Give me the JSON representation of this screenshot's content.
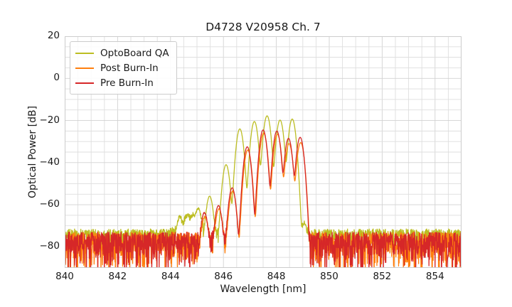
{
  "chart_data": {
    "type": "line",
    "title": "D4728 V20958 Ch. 7",
    "xlabel": "Wavelength [nm]",
    "ylabel": "Optical Power [dB]",
    "xlim": [
      840,
      855
    ],
    "ylim": [
      -90,
      20
    ],
    "xticks": [
      840,
      842,
      844,
      846,
      848,
      850,
      852,
      854
    ],
    "yticks": [
      20,
      0,
      -20,
      -40,
      -60,
      -80
    ],
    "minor_x_step_nm": 0.5,
    "minor_y_step_db": 5,
    "grid": true,
    "legend_position": "upper left",
    "background": "#ffffff",
    "grid_color_major": "#d2d2d2",
    "grid_color_minor": "#dedede",
    "spine_color": "#cccccc",
    "description": "Optical spectra of VCSEL channel 7: multimode peak cluster between 845 and 849 nm over a noise floor near -73 to -90 dB",
    "series": [
      {
        "name": "OptoBoard QA",
        "color": "#bcbd22",
        "mode_width_nm": 0.1,
        "noise_floor_db": -71.5,
        "noise_spread_db": 4.5,
        "broad_bump": {
          "center_nm": 844.8,
          "height_db": 5.0,
          "width_nm": 0.6
        },
        "peaks": [
          [
            844.35,
            -67
          ],
          [
            844.62,
            -66.5
          ],
          [
            844.85,
            -66
          ],
          [
            845.05,
            -62.5
          ],
          [
            845.48,
            -56
          ],
          [
            846.1,
            -41
          ],
          [
            846.62,
            -24
          ],
          [
            847.17,
            -20.5
          ],
          [
            847.65,
            -17.8
          ],
          [
            848.14,
            -19.8
          ],
          [
            848.6,
            -19.3
          ],
          [
            849.05,
            -70
          ]
        ]
      },
      {
        "name": "Post Burn-In",
        "color": "#ff7f0e",
        "mode_width_nm": 0.1,
        "noise_floor_db": -73,
        "noise_spread_db": 8,
        "broad_bump": null,
        "peaks": [
          [
            845.3,
            -66
          ],
          [
            845.83,
            -62
          ],
          [
            846.35,
            -53.5
          ],
          [
            846.92,
            -34
          ],
          [
            847.52,
            -26
          ],
          [
            848.04,
            -26.5
          ],
          [
            848.48,
            -31
          ],
          [
            848.92,
            -30.5
          ]
        ]
      },
      {
        "name": "Pre Burn-In",
        "color": "#d62728",
        "mode_width_nm": 0.1,
        "noise_floor_db": -73,
        "noise_spread_db": 8,
        "broad_bump": null,
        "peaks": [
          [
            845.28,
            -64
          ],
          [
            845.81,
            -60.5
          ],
          [
            846.33,
            -52
          ],
          [
            846.9,
            -32.5
          ],
          [
            847.5,
            -24.5
          ],
          [
            848.02,
            -25
          ],
          [
            848.46,
            -28.5
          ],
          [
            848.9,
            -28
          ]
        ]
      }
    ]
  }
}
